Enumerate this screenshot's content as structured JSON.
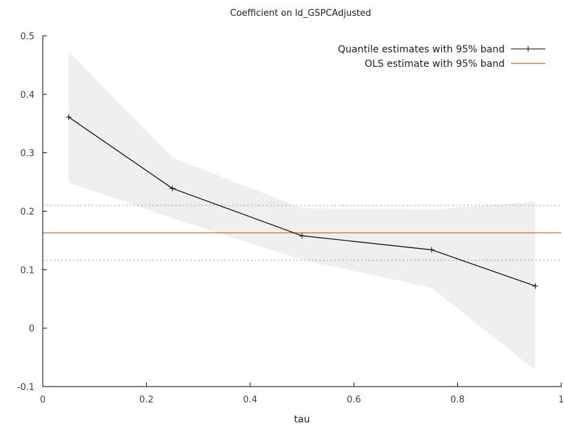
{
  "chart_data": {
    "type": "line",
    "title": "Coefficient on ld_GSPCAdjusted",
    "xlabel": "tau",
    "ylabel": "",
    "xlim": [
      0,
      1
    ],
    "ylim": [
      -0.1,
      0.5
    ],
    "x_ticks": [
      "0",
      "0.2",
      "0.4",
      "0.6",
      "0.8",
      "1"
    ],
    "y_ticks": [
      "-0.1",
      "0",
      "0.1",
      "0.2",
      "0.3",
      "0.4",
      "0.5"
    ],
    "legend_position": "top-right",
    "grid": false,
    "series": [
      {
        "name": "Quantile estimates with 95% band",
        "kind": "line-with-markers",
        "color": "#000000",
        "x": [
          0.05,
          0.25,
          0.5,
          0.75,
          0.95
        ],
        "y": [
          0.361,
          0.239,
          0.158,
          0.134,
          0.072
        ],
        "band_lower": [
          0.249,
          0.188,
          0.117,
          0.069,
          -0.072
        ],
        "band_upper": [
          0.473,
          0.292,
          0.205,
          0.203,
          0.216
        ],
        "band_color": "#efefef"
      },
      {
        "name": "OLS estimate with 95% band",
        "kind": "horizontal-line",
        "color": "#d2691e",
        "y": 0.163,
        "band_lower": 0.116,
        "band_upper": 0.21
      }
    ]
  }
}
